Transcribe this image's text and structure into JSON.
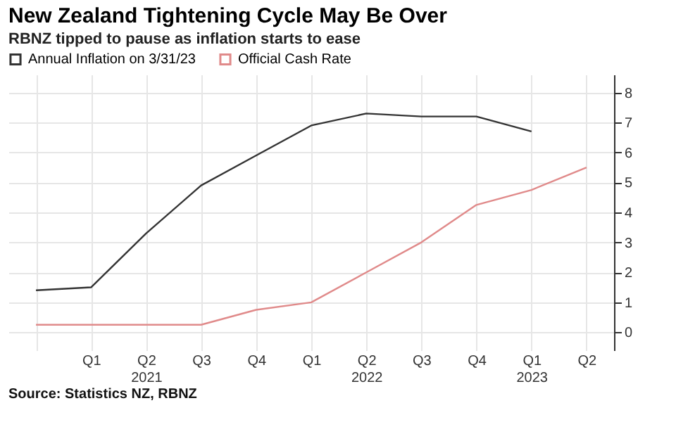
{
  "chart_data": {
    "type": "line",
    "title": "New Zealand Tightening Cycle May Be Over",
    "subtitle": "RBNZ tipped to pause as inflation starts to ease",
    "categories": [
      null,
      "Q1",
      "Q2\n2021",
      "Q3",
      "Q4",
      "Q1",
      "Q2\n2022",
      "Q3",
      "Q4",
      "Q1\n2023",
      "Q2"
    ],
    "series": [
      {
        "name": "Annual Inflation on 3/31/23",
        "color": "#333333",
        "values": [
          1.4,
          1.5,
          3.3,
          4.9,
          5.9,
          6.9,
          7.3,
          7.2,
          7.2,
          6.7,
          null
        ]
      },
      {
        "name": "Official Cash Rate",
        "color": "#e08a8a",
        "values": [
          0.25,
          0.25,
          0.25,
          0.25,
          0.75,
          1.0,
          2.0,
          3.0,
          4.25,
          4.75,
          5.5
        ]
      }
    ],
    "ylim": [
      -0.6,
      8.6
    ],
    "yticks": [
      0,
      1,
      2,
      3,
      4,
      5,
      6,
      7,
      8
    ],
    "grid": true,
    "legend": "top left",
    "line_style": "solid",
    "annotations": [
      "Source: Statistics NZ, RBNZ"
    ]
  }
}
